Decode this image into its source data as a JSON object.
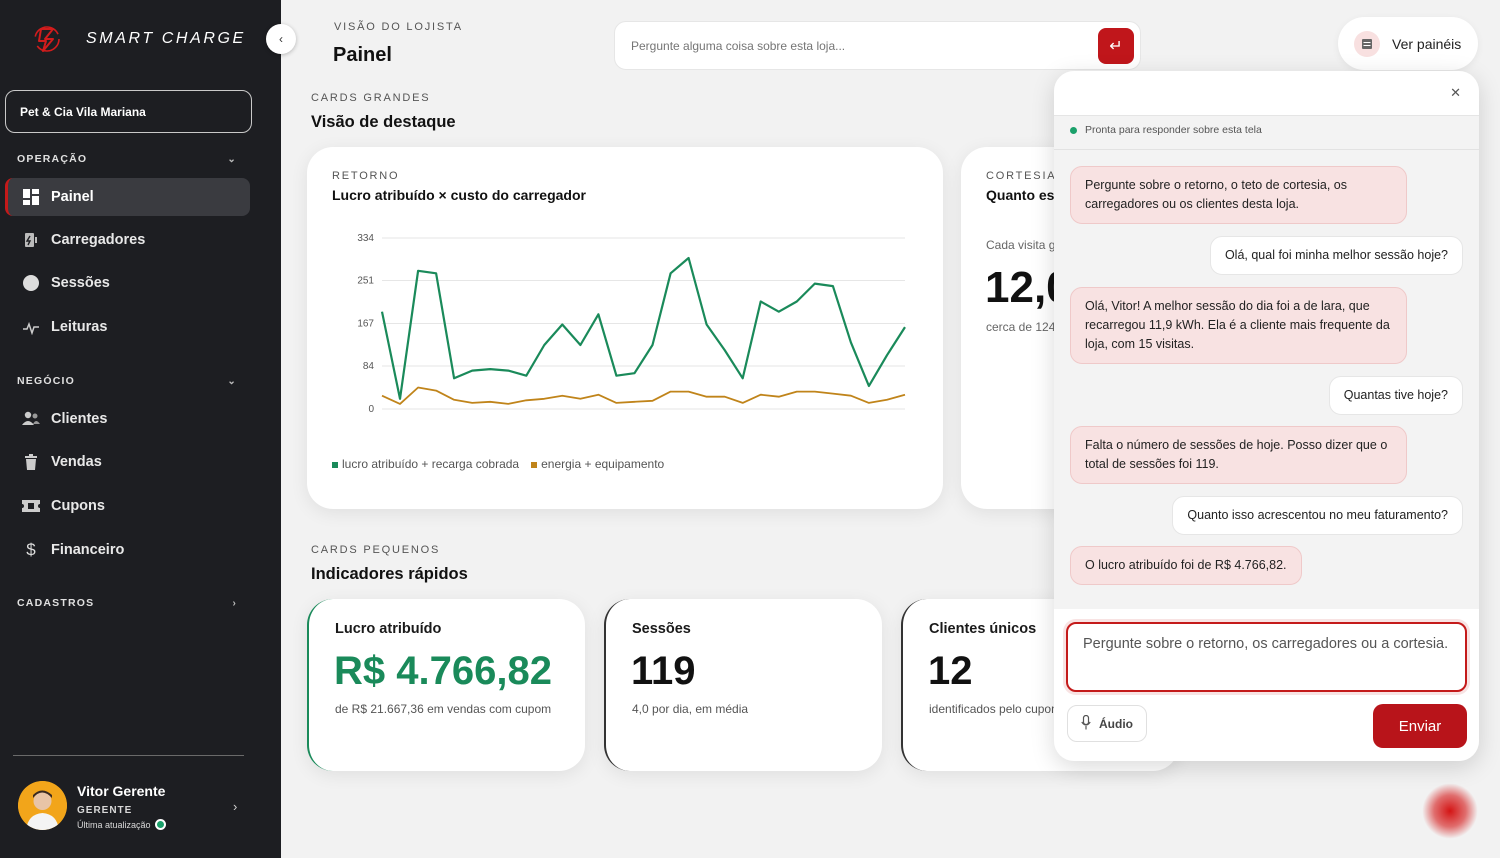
{
  "brand": {
    "name": "SMART CHARGE"
  },
  "store": {
    "name": "Pet & Cia Vila Mariana"
  },
  "sidebar": {
    "sections": [
      {
        "title": "OPERAÇÃO",
        "items": [
          {
            "label": "Painel",
            "icon": "grid-icon",
            "active": true
          },
          {
            "label": "Carregadores",
            "icon": "charger-icon"
          },
          {
            "label": "Sessões",
            "icon": "circle-icon"
          },
          {
            "label": "Leituras",
            "icon": "pulse-icon"
          }
        ]
      },
      {
        "title": "NEGÓCIO",
        "items": [
          {
            "label": "Clientes",
            "icon": "users-icon"
          },
          {
            "label": "Vendas",
            "icon": "trash-bag-icon"
          },
          {
            "label": "Cupons",
            "icon": "ticket-icon"
          },
          {
            "label": "Financeiro",
            "icon": "dollar-icon"
          }
        ]
      },
      {
        "title": "CADASTROS",
        "items": []
      }
    ]
  },
  "user": {
    "name": "Vitor Gerente",
    "role": "GERENTE",
    "update": "Última atualização"
  },
  "header": {
    "eyebrow": "VISÃO DO LOJISTA",
    "title": "Painel",
    "ask_placeholder": "Pergunte alguma coisa sobre esta loja...",
    "panels_label": "Ver painéis"
  },
  "big_section": {
    "eyebrow": "CARDS GRANDES",
    "title": "Visão de destaque"
  },
  "return_card": {
    "eyebrow": "RETORNO",
    "title": "Lucro atribuído × custo do carregador",
    "legend": [
      "lucro atribuído + recarga cobrada",
      "energia + equipamento"
    ]
  },
  "cortesia_card": {
    "eyebrow": "CORTESIA",
    "title": "Quanto es",
    "sub": "Cada visita g",
    "value": "12,0",
    "note": "cerca de 124"
  },
  "small_section": {
    "eyebrow": "CARDS PEQUENOS",
    "title": "Indicadores rápidos"
  },
  "kpis": [
    {
      "label": "Lucro atribuído",
      "value": "R$ 4.766,82",
      "sub": "de R$ 21.667,36 em vendas com cupom"
    },
    {
      "label": "Sessões",
      "value": "119",
      "sub": "4,0 por dia, em média"
    },
    {
      "label": "Clientes únicos",
      "value": "12",
      "sub": "identificados pelo cupom"
    }
  ],
  "chat": {
    "status": "Pronta para responder sobre esta tela",
    "messages": [
      {
        "from": "bot",
        "text": "Pergunte sobre o retorno, o teto de cortesia, os carregadores ou os clientes desta loja."
      },
      {
        "from": "me",
        "text": "Olá, qual foi minha melhor sessão hoje?"
      },
      {
        "from": "bot",
        "text": "Olá, Vitor! A melhor sessão do dia foi a de lara, que recarregou 11,9 kWh. Ela é a cliente mais frequente da loja, com 15 visitas."
      },
      {
        "from": "me",
        "text": "Quantas tive hoje?"
      },
      {
        "from": "bot",
        "text": "Falta o número de sessões de hoje. Posso dizer que o total de sessões foi 119."
      },
      {
        "from": "me",
        "text": "Quanto isso acrescentou no meu faturamento?"
      },
      {
        "from": "bot",
        "text": "O lucro atribuído foi de R$ 4.766,82."
      }
    ],
    "input_placeholder": "Pergunte sobre o retorno, os carregadores ou a cortesia.",
    "audio_label": "Áudio",
    "send_label": "Enviar"
  },
  "chart_data": {
    "type": "line",
    "yticks": [
      0,
      84,
      167,
      251,
      334
    ],
    "ylim": [
      0,
      334
    ],
    "grid": true,
    "legend_position": "bottom-left",
    "series": [
      {
        "name": "lucro atribuído + recarga cobrada",
        "color": "#1a8a5a",
        "values": [
          190,
          20,
          270,
          265,
          60,
          75,
          78,
          75,
          65,
          125,
          165,
          125,
          185,
          65,
          70,
          125,
          265,
          295,
          165,
          115,
          60,
          210,
          190,
          210,
          245,
          240,
          130,
          45,
          105,
          160
        ]
      },
      {
        "name": "energia + equipamento",
        "color": "#c0841a",
        "values": [
          26,
          10,
          42,
          36,
          18,
          12,
          14,
          10,
          17,
          20,
          26,
          20,
          28,
          12,
          14,
          16,
          34,
          34,
          24,
          24,
          12,
          28,
          24,
          34,
          34,
          30,
          26,
          12,
          18,
          28
        ]
      }
    ]
  }
}
